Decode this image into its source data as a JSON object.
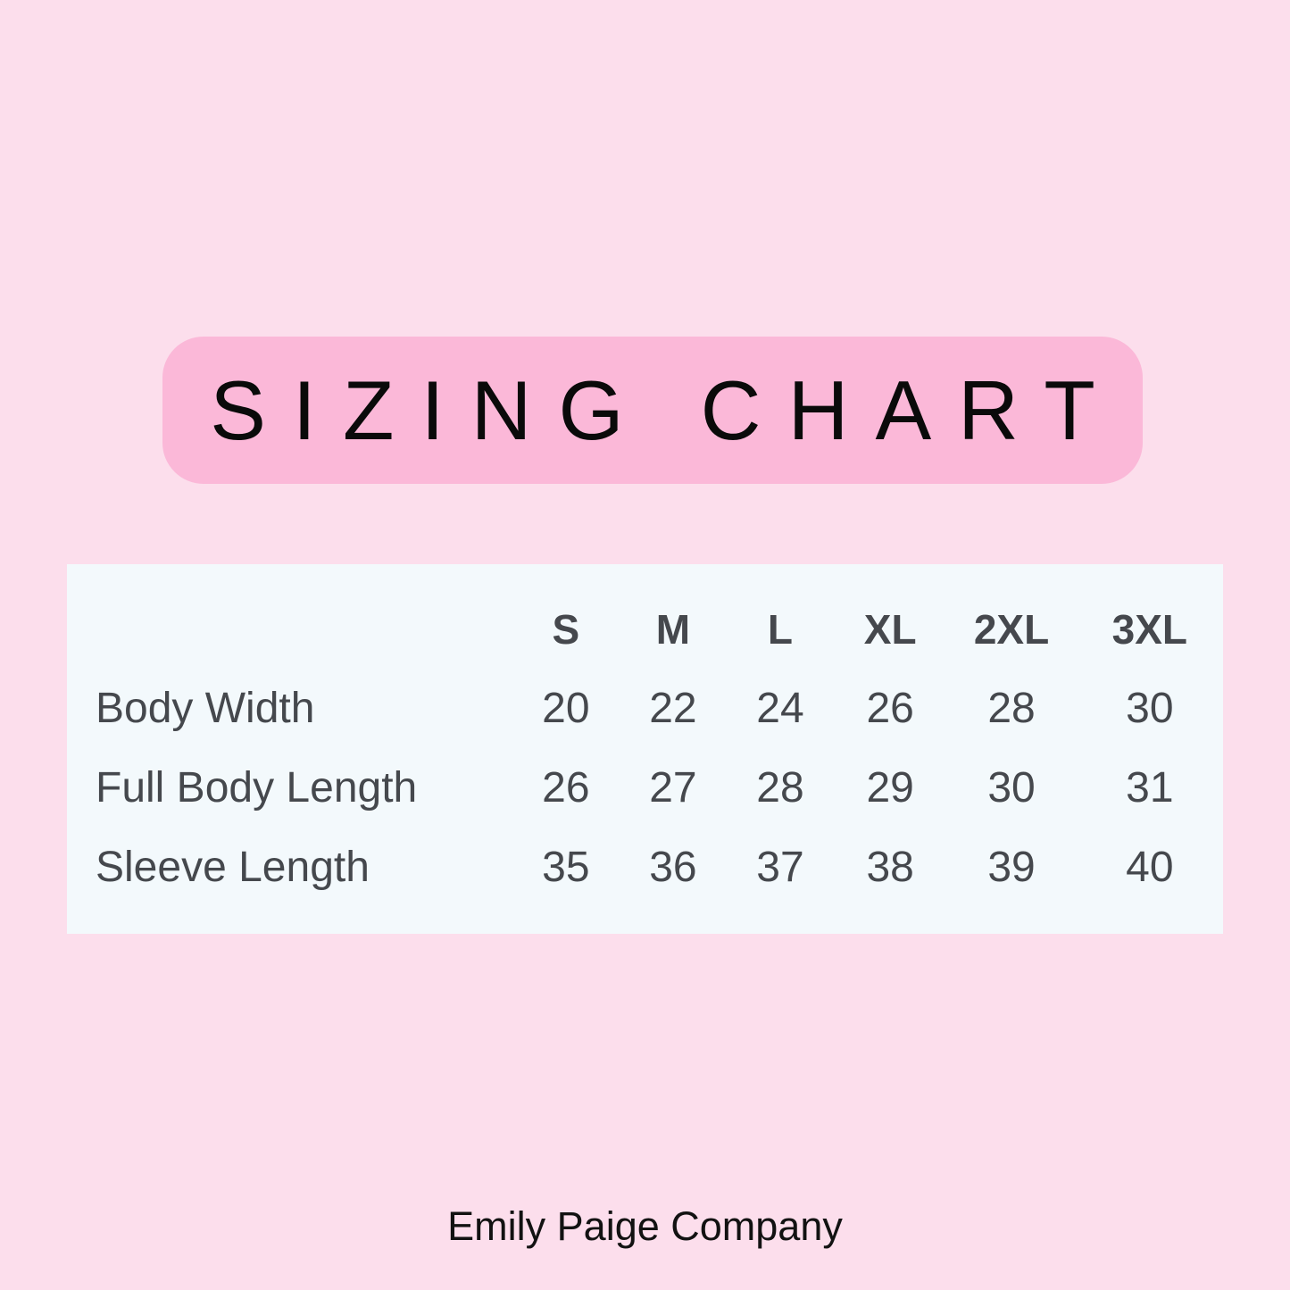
{
  "page": {
    "title": "SIZING CHART",
    "footer": "Emily Paige Company"
  },
  "theme": {
    "background_color": "#FCDEEC",
    "title_pill_color": "#FBB8D8",
    "table_background_color": "#F3F9FC",
    "table_text_color": "#45484D",
    "title_text_color": "#0A0A0A"
  },
  "chart_data": {
    "type": "table",
    "title": "SIZING CHART",
    "columns": [
      "",
      "S",
      "M",
      "L",
      "XL",
      "2XL",
      "3XL"
    ],
    "rows": [
      {
        "label": "Body Width",
        "values": [
          20,
          22,
          24,
          26,
          28,
          30
        ]
      },
      {
        "label": "Full Body Length",
        "values": [
          26,
          27,
          28,
          29,
          30,
          31
        ]
      },
      {
        "label": "Sleeve Length",
        "values": [
          35,
          36,
          37,
          38,
          39,
          40
        ]
      }
    ]
  }
}
